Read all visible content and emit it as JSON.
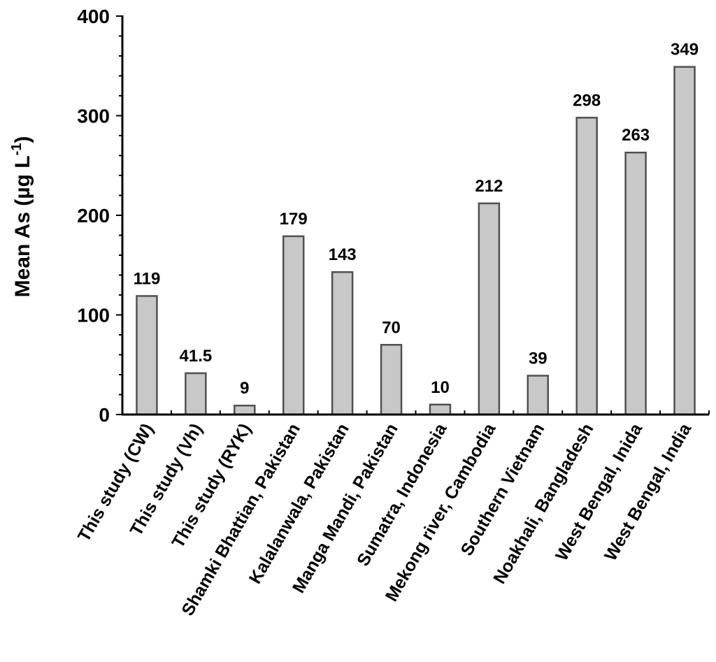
{
  "chart_data": {
    "type": "bar",
    "categories": [
      "This study (CW)",
      "This study (Vh)",
      "This study (RYK)",
      "Shamki Bhattian, Pakistan",
      "Kalalanwala, Pakistan",
      "Manga Mandi, Pakistan",
      "Sumatra, Indonesia",
      "Mekong river, Cambodia",
      "Southern Vietnam",
      "Noakhali, Bangladesh",
      "West Bengal, Inida",
      "West Bengal, India"
    ],
    "values": [
      119,
      41.5,
      9,
      179,
      143,
      70,
      10,
      212,
      39,
      298,
      263,
      349
    ],
    "data_labels": [
      "119",
      "41.5",
      "9",
      "179",
      "143",
      "70",
      "10",
      "212",
      "39",
      "298",
      "263",
      "349"
    ],
    "title": "",
    "xlabel": "",
    "ylabel": "Mean As (µg L",
    "ylabel_superscript": "-1",
    "ylabel_close": ")",
    "ylim": [
      0,
      400
    ],
    "yticks": [
      "0",
      "100",
      "200",
      "300",
      "400"
    ],
    "grid": false,
    "bar_fill": "#c8c8c8",
    "bar_stroke": "#505050",
    "axis_color": "#000000"
  }
}
